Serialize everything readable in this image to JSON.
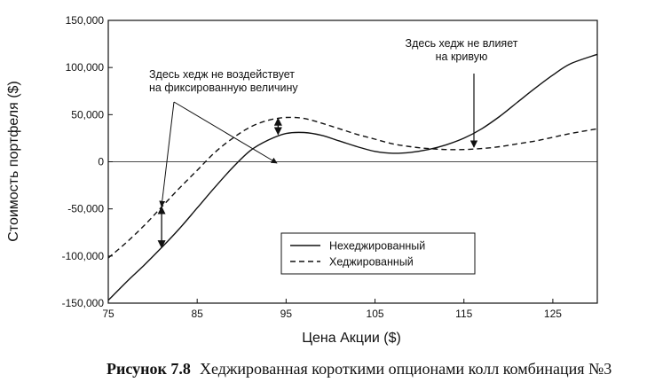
{
  "caption": {
    "label": "Рисунок 7.8",
    "text": "Хеджированная короткими опционами колл комбинация №3"
  },
  "chart_data": {
    "type": "line",
    "title": "",
    "xlabel": "Цена Акции ($)",
    "ylabel": "Стоимость портфеля ($)",
    "xlim": [
      75,
      130
    ],
    "ylim": [
      -150000,
      150000
    ],
    "xticks": [
      75,
      85,
      95,
      105,
      115,
      125
    ],
    "xtick_labels": [
      "75",
      "85",
      "95",
      "105",
      "115",
      "125"
    ],
    "yticks": [
      150000,
      100000,
      50000,
      0,
      -50000,
      -100000,
      -150000
    ],
    "ytick_labels": [
      "150,000",
      "100,000",
      "50,000",
      "0",
      "-50,000",
      "-100,000",
      "-150,000"
    ],
    "grid": false,
    "legend_position": "lower-center",
    "series": [
      {
        "name": "Нехеджированный",
        "style": "solid",
        "x": [
          75,
          77,
          79,
          81,
          83,
          85,
          87,
          89,
          91,
          93,
          95,
          97,
          99,
          101,
          103,
          105,
          107,
          109,
          111,
          113,
          115,
          117,
          119,
          121,
          123,
          125,
          127,
          130
        ],
        "y": [
          -147000,
          -128000,
          -110000,
          -91000,
          -71000,
          -49000,
          -27000,
          -6000,
          12000,
          23000,
          30000,
          31000,
          28000,
          22000,
          16000,
          11000,
          9000,
          10000,
          13000,
          18000,
          25000,
          35000,
          48000,
          63000,
          78000,
          92000,
          104000,
          114000
        ]
      },
      {
        "name": "Хеджированный",
        "style": "dashed",
        "x": [
          75,
          77,
          79,
          81,
          83,
          85,
          87,
          89,
          91,
          93,
          95,
          97,
          99,
          101,
          103,
          105,
          107,
          109,
          111,
          113,
          115,
          117,
          119,
          121,
          123,
          125,
          127,
          130
        ],
        "y": [
          -102000,
          -86000,
          -68000,
          -48000,
          -28000,
          -9000,
          10000,
          25000,
          37000,
          44000,
          47000,
          46000,
          41000,
          35000,
          29000,
          24000,
          19000,
          16000,
          14000,
          13000,
          13000,
          14000,
          16000,
          19000,
          22000,
          26000,
          30000,
          35000
        ]
      }
    ],
    "annotations": [
      {
        "text_lines": [
          "Здесь хедж не воздействует",
          "на фиксированную величину"
        ]
      },
      {
        "text_lines": [
          "Здесь хедж не влияет",
          "на кривую"
        ]
      }
    ]
  },
  "colors": {
    "line": "#111111",
    "background": "#ffffff"
  }
}
